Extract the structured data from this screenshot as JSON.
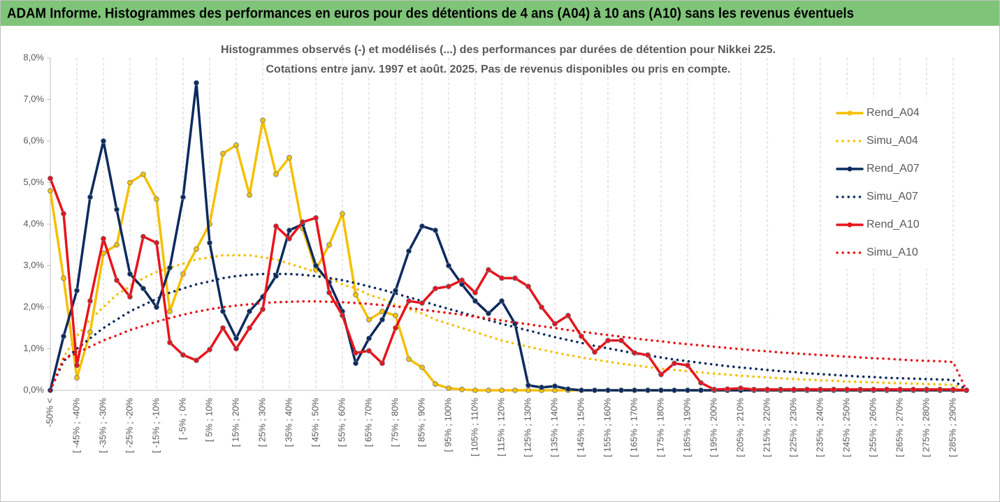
{
  "chart_data": {
    "type": "line",
    "header": "ADAM Informe. Histogrammes des performances en euros pour des détentions de 4 ans (A04) à 10 ans (A10) sans les revenus éventuels",
    "title": [
      "Histogrammes observés (-) et modélisés (...) des performances par durées de détention pour Nikkei 225.",
      "Cotations entre janv. 1997 et août. 2025. Pas de revenus disponibles ou pris en compte."
    ],
    "categories": [
      "-50% <",
      null,
      "[ -45% ; -40%",
      null,
      "[ -35% ; -30%",
      null,
      "[ -25% ; -20%",
      null,
      "[ -15% ; -10%",
      null,
      "[ -5% ; 0%",
      null,
      "[ 5% ; 10%",
      null,
      "[ 15% ; 20%",
      null,
      "[ 25% ; 30%",
      null,
      "[ 35% ; 40%",
      null,
      "[ 45% ; 50%",
      null,
      "[ 55% ; 60%",
      null,
      "[ 65% ; 70%",
      null,
      "[ 75% ; 80%",
      null,
      "[ 85% ; 90%",
      null,
      "[ 95% ; 100%",
      null,
      "[ 105% ; 110%",
      null,
      "[ 115% ; 120%",
      null,
      "[ 125% ; 130%",
      null,
      "[ 135% ; 140%",
      null,
      "[ 145% ; 150%",
      null,
      "[ 155% ; 160%",
      null,
      "[ 165% ; 170%",
      null,
      "[ 175% ; 180%",
      null,
      "[ 185% ; 190%",
      null,
      "[ 195% ; 200%",
      null,
      "[ 205% ; 210%",
      null,
      "[ 215% ; 220%",
      null,
      "[ 225% ; 230%",
      null,
      "[ 235% ; 240%",
      null,
      "[ 245% ; 250%",
      null,
      "[ 255% ; 260%",
      null,
      "[ 265% ; 270%",
      null,
      "[ 275% ; 280%",
      null,
      "[ 285% ; 290%",
      null
    ],
    "series": [
      {
        "name": "Rend_A04",
        "color": "#f5c000",
        "style": "solid",
        "values": [
          4.8,
          2.7,
          0.3,
          1.4,
          3.3,
          3.5,
          5.0,
          5.2,
          4.6,
          1.9,
          2.8,
          3.4,
          4.0,
          5.7,
          5.9,
          4.7,
          6.5,
          5.2,
          5.6,
          3.9,
          2.9,
          3.5,
          4.25,
          2.3,
          1.7,
          1.9,
          1.8,
          0.75,
          0.55,
          0.15,
          0.05,
          0.02,
          0,
          0,
          0,
          0,
          0,
          0,
          0,
          0,
          0,
          0,
          0,
          0,
          0,
          0,
          0,
          0,
          0,
          0,
          0,
          0,
          0,
          0,
          0,
          0,
          0,
          0,
          0,
          0,
          0,
          0,
          0,
          0,
          0,
          0,
          0,
          0,
          0,
          0
        ]
      },
      {
        "name": "Simu_A04",
        "color": "#f5c000",
        "style": "dotted",
        "values": [
          0,
          0.8,
          1.3,
          1.7,
          2.0,
          2.3,
          2.5,
          2.7,
          2.85,
          2.95,
          3.05,
          3.15,
          3.2,
          3.25,
          3.25,
          3.25,
          3.2,
          3.15,
          3.05,
          2.95,
          2.85,
          2.7,
          2.55,
          2.45,
          2.3,
          2.2,
          2.05,
          1.95,
          1.85,
          1.7,
          1.6,
          1.5,
          1.4,
          1.3,
          1.2,
          1.12,
          1.05,
          0.98,
          0.91,
          0.85,
          0.79,
          0.74,
          0.69,
          0.64,
          0.6,
          0.56,
          0.52,
          0.49,
          0.46,
          0.43,
          0.4,
          0.38,
          0.35,
          0.33,
          0.31,
          0.29,
          0.27,
          0.26,
          0.24,
          0.23,
          0.21,
          0.2,
          0.19,
          0.18,
          0.17,
          0.16,
          0.15,
          0.14,
          0.13,
          0
        ]
      },
      {
        "name": "Rend_A07",
        "color": "#0c2a5e",
        "style": "solid",
        "values": [
          0,
          1.3,
          2.4,
          4.65,
          6.0,
          4.35,
          2.8,
          2.45,
          2.0,
          2.95,
          4.65,
          7.4,
          3.55,
          1.9,
          1.25,
          1.9,
          2.25,
          2.75,
          3.85,
          4.0,
          3.0,
          2.6,
          1.9,
          0.65,
          1.25,
          1.7,
          2.4,
          3.35,
          3.95,
          3.85,
          3.0,
          2.55,
          2.15,
          1.85,
          2.15,
          1.6,
          0.12,
          0.07,
          0.1,
          0.03,
          0,
          0,
          0,
          0,
          0,
          0,
          0,
          0,
          0,
          0,
          0,
          0,
          0,
          0,
          0,
          0,
          0,
          0,
          0,
          0,
          0,
          0,
          0,
          0,
          0,
          0,
          0,
          0,
          0,
          0
        ]
      },
      {
        "name": "Simu_A07",
        "color": "#0c2a5e",
        "style": "dotted",
        "values": [
          0,
          0.7,
          1.0,
          1.25,
          1.5,
          1.7,
          1.9,
          2.05,
          2.2,
          2.35,
          2.45,
          2.55,
          2.62,
          2.7,
          2.75,
          2.78,
          2.8,
          2.8,
          2.8,
          2.78,
          2.75,
          2.7,
          2.65,
          2.58,
          2.5,
          2.42,
          2.33,
          2.24,
          2.15,
          2.05,
          1.96,
          1.87,
          1.78,
          1.69,
          1.6,
          1.52,
          1.44,
          1.36,
          1.28,
          1.21,
          1.14,
          1.07,
          1.01,
          0.95,
          0.89,
          0.84,
          0.79,
          0.74,
          0.7,
          0.66,
          0.62,
          0.58,
          0.55,
          0.52,
          0.49,
          0.46,
          0.44,
          0.41,
          0.39,
          0.37,
          0.35,
          0.33,
          0.32,
          0.3,
          0.29,
          0.28,
          0.27,
          0.26,
          0.25,
          0
        ]
      },
      {
        "name": "Rend_A10",
        "color": "#e8141b",
        "style": "solid",
        "values": [
          5.1,
          4.25,
          0.6,
          2.15,
          3.65,
          2.65,
          2.25,
          3.7,
          3.55,
          1.15,
          0.85,
          0.72,
          0.98,
          1.5,
          1.0,
          1.5,
          1.95,
          3.95,
          3.65,
          4.05,
          4.15,
          2.35,
          1.8,
          0.9,
          0.95,
          0.65,
          1.5,
          2.15,
          2.1,
          2.45,
          2.5,
          2.65,
          2.35,
          2.9,
          2.7,
          2.7,
          2.5,
          2.0,
          1.6,
          1.8,
          1.3,
          0.92,
          1.2,
          1.2,
          0.9,
          0.85,
          0.38,
          0.65,
          0.6,
          0.18,
          0.02,
          0.03,
          0.05,
          0.02,
          0.02,
          0.02,
          0.02,
          0.02,
          0.02,
          0.02,
          0.02,
          0.02,
          0.02,
          0.02,
          0.02,
          0.02,
          0.02,
          0.02,
          0.02,
          0
        ]
      },
      {
        "name": "Simu_A10",
        "color": "#e8141b",
        "style": "dotted",
        "values": [
          0,
          0.75,
          0.9,
          1.05,
          1.2,
          1.32,
          1.45,
          1.55,
          1.65,
          1.74,
          1.82,
          1.89,
          1.95,
          2.0,
          2.04,
          2.07,
          2.1,
          2.12,
          2.13,
          2.14,
          2.14,
          2.13,
          2.12,
          2.1,
          2.08,
          2.05,
          2.02,
          1.98,
          1.94,
          1.9,
          1.86,
          1.82,
          1.77,
          1.73,
          1.68,
          1.63,
          1.59,
          1.54,
          1.5,
          1.45,
          1.41,
          1.37,
          1.33,
          1.29,
          1.25,
          1.21,
          1.18,
          1.14,
          1.11,
          1.08,
          1.05,
          1.02,
          0.99,
          0.96,
          0.94,
          0.91,
          0.89,
          0.87,
          0.85,
          0.83,
          0.81,
          0.79,
          0.77,
          0.76,
          0.74,
          0.72,
          0.71,
          0.7,
          0.68,
          0
        ]
      }
    ],
    "ylim": [
      0,
      8
    ],
    "yticks": [
      {
        "value": 0,
        "label": "0,0%"
      },
      {
        "value": 1,
        "label": "1,0%"
      },
      {
        "value": 2,
        "label": "2,0%"
      },
      {
        "value": 3,
        "label": "3,0%"
      },
      {
        "value": 4,
        "label": "4,0%"
      },
      {
        "value": 5,
        "label": "5,0%"
      },
      {
        "value": 6,
        "label": "6,0%"
      },
      {
        "value": 7,
        "label": "7,0%"
      },
      {
        "value": 8,
        "label": "8,0%"
      }
    ],
    "x_grid": true,
    "legend": "right",
    "header_color": "#80c47a"
  }
}
